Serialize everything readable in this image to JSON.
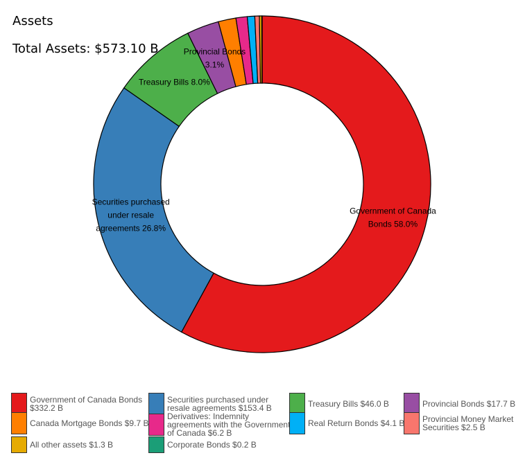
{
  "title": "Assets",
  "total": "Total Assets: $573.10 B",
  "chart_data": {
    "type": "pie",
    "subtype": "donut",
    "title": "Assets",
    "unit": "B",
    "slices": [
      {
        "name": "Government of Canada Bonds",
        "value": 332.2,
        "color": "#e41a1c",
        "label_lines": [
          "Government of Canada",
          "Bonds 58.0%"
        ],
        "legend_lines": [
          "Government of Canada Bonds",
          "$332.2 B"
        ]
      },
      {
        "name": "Securities purchased under resale agreements",
        "value": 153.4,
        "color": "#377eb8",
        "label_lines": [
          "Securities purchased",
          "under resale",
          "agreements 26.8%"
        ],
        "legend_lines": [
          "Securities purchased under",
          "resale agreements $153.4 B"
        ]
      },
      {
        "name": "Treasury Bills",
        "value": 46.0,
        "color": "#4daf4a",
        "label_lines": [
          "Treasury Bills 8.0%"
        ],
        "legend_lines": [
          "Treasury Bills $46.0 B"
        ]
      },
      {
        "name": "Provincial Bonds",
        "value": 17.7,
        "color": "#984ea3",
        "label_lines": [
          "Provincial Bonds",
          "3.1%"
        ],
        "legend_lines": [
          "Provincial Bonds $17.7 B"
        ]
      },
      {
        "name": "Canada Mortgage Bonds",
        "value": 9.7,
        "color": "#ff7f00",
        "label_lines": [],
        "legend_lines": [
          "Canada Mortgage Bonds $9.7 B"
        ]
      },
      {
        "name": "Derivatives: Indemnity agreements with the Government of Canada",
        "value": 6.2,
        "color": "#e7298a",
        "label_lines": [],
        "legend_lines": [
          "Derivatives: Indemnity",
          "agreements with the Government",
          "of Canada $6.2 B"
        ]
      },
      {
        "name": "Real Return Bonds",
        "value": 4.1,
        "color": "#00b0f6",
        "label_lines": [],
        "legend_lines": [
          "Real Return Bonds $4.1 B"
        ]
      },
      {
        "name": "Provincial Money Market Securities",
        "value": 2.5,
        "color": "#f8766d",
        "label_lines": [],
        "legend_lines": [
          "Provincial Money Market",
          "Securities $2.5 B"
        ]
      },
      {
        "name": "All other assets",
        "value": 1.3,
        "color": "#e6ab02",
        "label_lines": [],
        "legend_lines": [
          "All other assets $1.3 B"
        ]
      },
      {
        "name": "Corporate Bonds",
        "value": 0.2,
        "color": "#1b9e77",
        "label_lines": [],
        "legend_lines": [
          "Corporate Bonds $0.2 B"
        ]
      }
    ],
    "legend_position": "bottom"
  }
}
